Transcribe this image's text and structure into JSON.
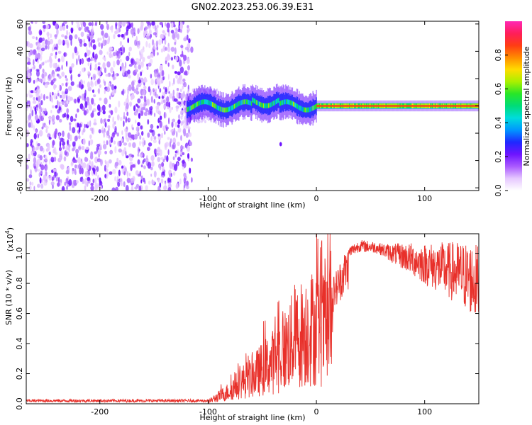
{
  "title": "GN02.2023.253.06.39.E31",
  "chart_data": [
    {
      "type": "heatmap",
      "xlabel": "Height of straight line (km)",
      "ylabel": "Frequency (Hz)",
      "xlim": [
        -268,
        150
      ],
      "ylim": [
        -62,
        62
      ],
      "xticks": [
        -200,
        -100,
        0,
        100
      ],
      "yticks": [
        60,
        40,
        20,
        0,
        -20,
        -40,
        -60
      ],
      "colorbar": {
        "label": "Normalized spectral amplitude",
        "range": [
          0,
          1
        ],
        "ticks": [
          "0.0",
          "0.2",
          "0.4",
          "0.6",
          "0.8"
        ],
        "colors": [
          "#ffffff",
          "#e6c8ff",
          "#aa5aff",
          "#6e14ff",
          "#1e28ff",
          "#0096ff",
          "#00dcdc",
          "#00dc78",
          "#28e628",
          "#aaf000",
          "#ffdc00",
          "#ff8c00",
          "#ff3c14",
          "#ff1e5a",
          "#ff28b4"
        ]
      },
      "description_values": {
        "noise_region_x": [
          -268,
          -115
        ],
        "signal_start_x": -120,
        "signal_freq": 0,
        "strong_line_start_x": 0,
        "outlier": {
          "x": -33,
          "freq": -28
        }
      }
    },
    {
      "type": "line",
      "xlabel": "Height of straight line (km)",
      "ylabel": "SNR (10 * v/v)",
      "scale_label": "(x10",
      "scale_exp": "4",
      "scale_close": ")",
      "xlim": [
        -268,
        150
      ],
      "ylim": [
        0,
        1.13
      ],
      "xticks": [
        -200,
        -100,
        0,
        100
      ],
      "yticks": [
        "0.0",
        "0.2",
        "0.4",
        "0.6",
        "0.8",
        "1.0"
      ],
      "series": [
        {
          "color": "#e8302a",
          "envelope": [
            {
              "x": -268,
              "y": 0.02
            },
            {
              "x": -100,
              "y": 0.02
            },
            {
              "x": -92,
              "y": 0.06
            },
            {
              "x": -80,
              "y": 0.12
            },
            {
              "x": -70,
              "y": 0.2
            },
            {
              "x": -60,
              "y": 0.25
            },
            {
              "x": -50,
              "y": 0.33
            },
            {
              "x": -40,
              "y": 0.4
            },
            {
              "x": -30,
              "y": 0.5
            },
            {
              "x": -20,
              "y": 0.62
            },
            {
              "x": -12,
              "y": 0.68
            },
            {
              "x": -5,
              "y": 0.72
            },
            {
              "x": 0,
              "y": 0.72
            },
            {
              "x": 5,
              "y": 0.7
            },
            {
              "x": 12,
              "y": 0.75
            },
            {
              "x": 20,
              "y": 0.88
            },
            {
              "x": 28,
              "y": 1.0
            },
            {
              "x": 40,
              "y": 1.05
            },
            {
              "x": 55,
              "y": 1.04
            },
            {
              "x": 70,
              "y": 1.0
            },
            {
              "x": 85,
              "y": 0.97
            },
            {
              "x": 100,
              "y": 0.93
            },
            {
              "x": 115,
              "y": 0.9
            },
            {
              "x": 130,
              "y": 0.87
            },
            {
              "x": 140,
              "y": 0.84
            },
            {
              "x": 150,
              "y": 0.8
            }
          ]
        }
      ]
    }
  ]
}
